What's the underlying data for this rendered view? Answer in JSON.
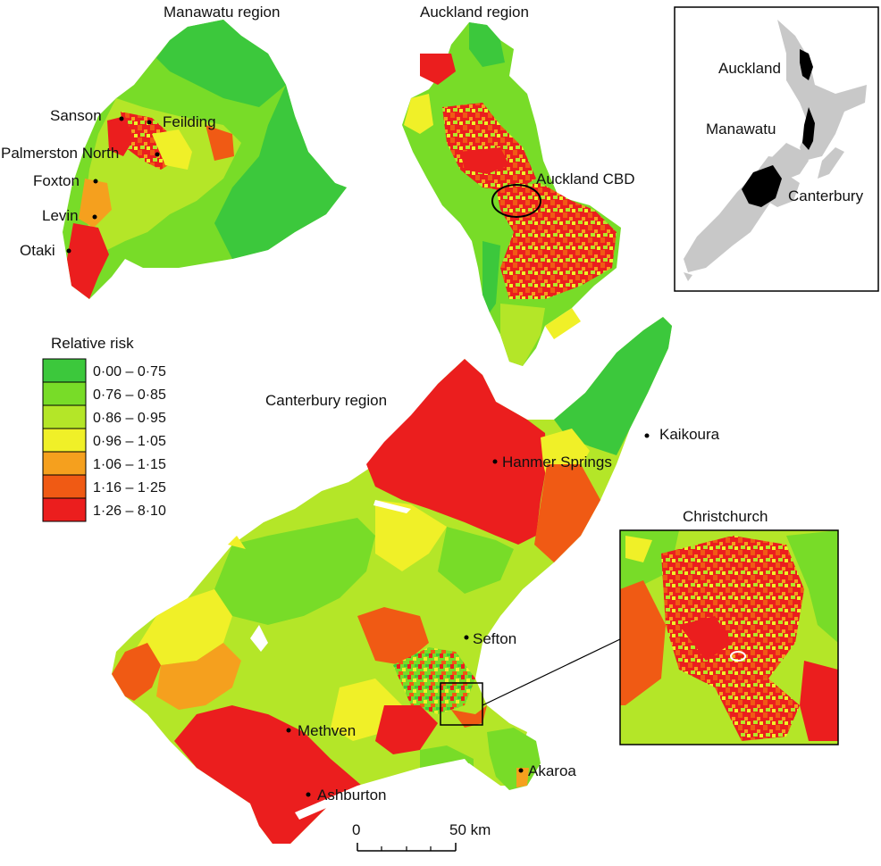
{
  "regions": {
    "manawatu_title": "Manawatu region",
    "auckland_title": "Auckland region",
    "canterbury_title": "Canterbury region",
    "christchurch_title": "Christchurch"
  },
  "towns": {
    "sanson": "Sanson",
    "feilding": "Feilding",
    "palmerston_north": "Palmerston North",
    "foxton": "Foxton",
    "levin": "Levin",
    "otaki": "Otaki",
    "auckland_cbd": "Auckland CBD",
    "kaikoura": "Kaikoura",
    "hanmer_springs": "Hanmer Springs",
    "sefton": "Sefton",
    "methven": "Methven",
    "ashburton": "Ashburton",
    "akaroa": "Akaroa"
  },
  "inset_nz": {
    "auckland": "Auckland",
    "manawatu": "Manawatu",
    "canterbury": "Canterbury"
  },
  "legend": {
    "title": "Relative risk",
    "items": [
      {
        "label": "0·00 – 0·75",
        "color": "#3cc83c"
      },
      {
        "label": "0·76 – 0·85",
        "color": "#78dc28"
      },
      {
        "label": "0·86 – 0·95",
        "color": "#b4e628"
      },
      {
        "label": "0·96 – 1·05",
        "color": "#f0f028"
      },
      {
        "label": "1·06 – 1·15",
        "color": "#f5a01e"
      },
      {
        "label": "1·16 – 1·25",
        "color": "#f05a14"
      },
      {
        "label": "1·26 – 8·10",
        "color": "#eb1e1e"
      }
    ]
  },
  "scale_bar": {
    "start": "0",
    "end": "50 km"
  },
  "colors": {
    "highlight_region": "#000000",
    "nz_land": "#c8c8c8"
  }
}
